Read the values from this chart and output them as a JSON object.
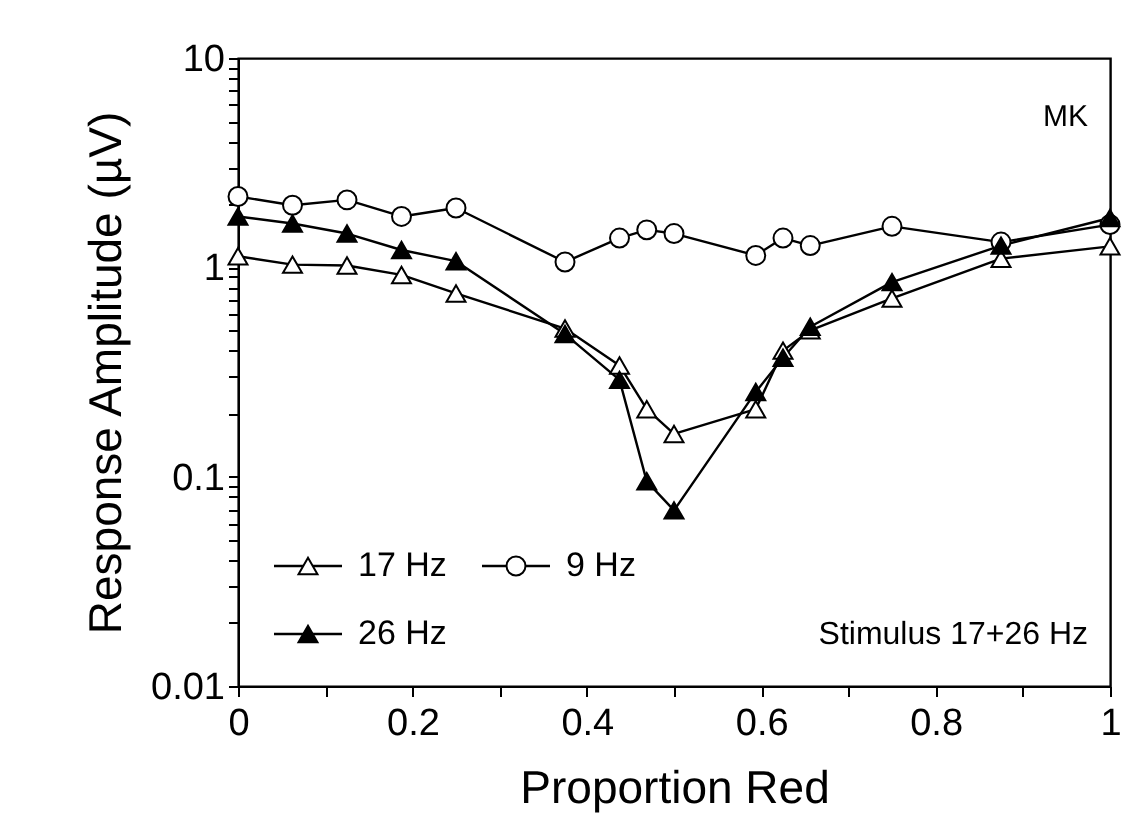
{
  "chart_data": {
    "type": "line",
    "xlabel": "Proportion Red",
    "ylabel": "Response Amplitude (µV)",
    "x": [
      0,
      0.0625,
      0.125,
      0.1875,
      0.25,
      0.375,
      0.4375,
      0.46875,
      0.5,
      0.59375,
      0.625,
      0.65625,
      0.75,
      0.875,
      1
    ],
    "series": [
      {
        "name": "17 Hz",
        "color": "#ffffff",
        "marker": "triangle",
        "values": [
          1.13,
          1.03,
          1.02,
          0.92,
          0.75,
          0.51,
          0.34,
          0.21,
          0.16,
          0.21,
          0.4,
          0.5,
          0.71,
          1.1,
          1.26
        ]
      },
      {
        "name": "9 Hz",
        "color": "#ffffff",
        "marker": "circle",
        "values": [
          2.18,
          1.98,
          2.1,
          1.75,
          1.92,
          1.06,
          1.38,
          1.51,
          1.45,
          1.14,
          1.38,
          1.27,
          1.57,
          1.32,
          1.6
        ]
      },
      {
        "name": "26 Hz",
        "color": "#000000",
        "marker": "triangle",
        "values": [
          1.75,
          1.62,
          1.45,
          1.21,
          1.07,
          0.48,
          0.29,
          0.095,
          0.069,
          0.254,
          0.37,
          0.52,
          0.85,
          1.27,
          1.72
        ]
      }
    ],
    "log": "y",
    "xlim": [
      0,
      1
    ],
    "ylim": [
      0.01,
      10
    ],
    "xticks": [
      0,
      {
        "value": 0.1,
        "label": null
      },
      0.2,
      {
        "value": 0.3,
        "label": null
      },
      0.4,
      {
        "value": 0.5,
        "label": null
      },
      0.6,
      {
        "value": 0.7,
        "label": null
      },
      0.8,
      {
        "value": 0.9,
        "label": null
      },
      1
    ],
    "yticks": [
      0.01,
      {
        "value": 0.02,
        "label": null
      },
      {
        "value": 0.03,
        "label": null
      },
      {
        "value": 0.04,
        "label": null
      },
      {
        "value": 0.05,
        "label": null
      },
      {
        "value": 0.06,
        "label": null
      },
      {
        "value": 0.07,
        "label": null
      },
      {
        "value": 0.08,
        "label": null
      },
      {
        "value": 0.09,
        "label": null
      },
      0.1,
      {
        "value": 0.2,
        "label": null
      },
      {
        "value": 0.3,
        "label": null
      },
      {
        "value": 0.4,
        "label": null
      },
      {
        "value": 0.5,
        "label": null
      },
      {
        "value": 0.6,
        "label": null
      },
      {
        "value": 0.7,
        "label": null
      },
      {
        "value": 0.8,
        "label": null
      },
      {
        "value": 0.9,
        "label": null
      },
      1,
      {
        "value": 2,
        "label": null
      },
      {
        "value": 3,
        "label": null
      },
      {
        "value": 4,
        "label": null
      },
      {
        "value": 5,
        "label": null
      },
      {
        "value": 6,
        "label": null
      },
      {
        "value": 7,
        "label": null
      },
      {
        "value": 8,
        "label": null
      },
      {
        "value": 9,
        "label": null
      },
      10
    ],
    "grid": false,
    "legend": "bottom left",
    "line_style": "solid",
    "annotations": [
      "MK",
      "Stimulus 17+26 Hz"
    ]
  }
}
